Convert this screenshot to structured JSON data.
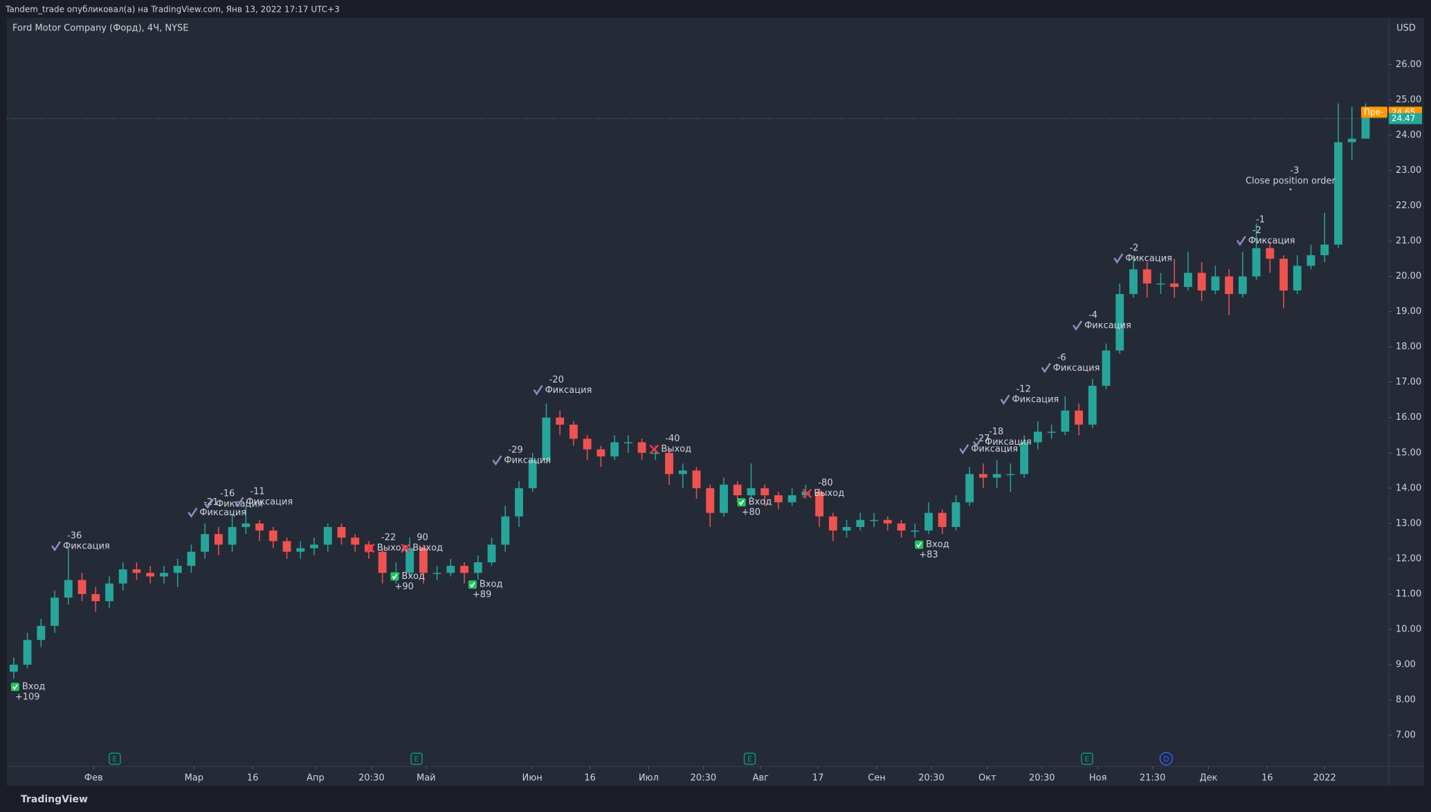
{
  "header": {
    "publisher": "Tandem_trade опубликовал(а) на TradingView.com, Янв 13, 2022 17:17 UTC+3",
    "brand": "TradingView"
  },
  "chart_data": {
    "type": "candlestick",
    "title": "Ford Motor Company (Форд), 4Ч, NYSE",
    "currency": "USD",
    "up_color": "#26a69a",
    "down_color": "#ef5350",
    "grid": false,
    "open": [
      8.8,
      9.0,
      9.7,
      10.1,
      10.9,
      11.4,
      11.0,
      10.8,
      11.3,
      11.7,
      11.6,
      11.5,
      11.6,
      11.8,
      12.2,
      12.7,
      12.4,
      12.9,
      13.0,
      12.8,
      12.5,
      12.2,
      12.3,
      12.4,
      12.9,
      12.6,
      12.4,
      12.2,
      11.6,
      11.6,
      12.3,
      11.6,
      11.6,
      11.8,
      11.6,
      11.9,
      12.4,
      13.2,
      14.0,
      14.8,
      16.0,
      15.8,
      15.4,
      15.1,
      14.9,
      15.3,
      15.3,
      15.0,
      15.0,
      14.4,
      14.5,
      14.0,
      13.3,
      14.1,
      13.8,
      14.0,
      13.8,
      13.6,
      13.8,
      13.9,
      13.2,
      12.8,
      12.9,
      13.1,
      13.1,
      13.0,
      12.8,
      12.8,
      13.3,
      12.9,
      13.6,
      14.4,
      14.3,
      14.4,
      14.4,
      15.3,
      15.6,
      15.6,
      16.2,
      15.8,
      16.9,
      17.9,
      19.5,
      20.2,
      19.8,
      19.8,
      19.7,
      20.1,
      19.6,
      20.0,
      19.5,
      20.0,
      20.8,
      20.5,
      19.6,
      20.3,
      20.6,
      20.9,
      23.8,
      23.9
    ],
    "high": [
      9.2,
      9.9,
      10.3,
      11.1,
      12.3,
      11.6,
      11.2,
      11.5,
      11.9,
      11.9,
      11.8,
      11.8,
      12.0,
      12.4,
      13.0,
      12.9,
      13.3,
      13.5,
      13.1,
      12.9,
      12.6,
      12.5,
      12.6,
      13.0,
      13.0,
      12.7,
      12.5,
      12.3,
      11.9,
      12.6,
      12.4,
      11.8,
      12.0,
      11.9,
      12.1,
      12.6,
      13.5,
      14.2,
      15.0,
      16.4,
      16.2,
      15.9,
      15.5,
      15.2,
      15.5,
      15.5,
      15.4,
      15.2,
      15.1,
      14.7,
      14.6,
      14.1,
      14.3,
      14.2,
      14.7,
      14.1,
      13.9,
      14.0,
      14.1,
      14.0,
      13.3,
      13.1,
      13.3,
      13.3,
      13.2,
      13.1,
      13.0,
      13.6,
      13.4,
      13.8,
      14.6,
      14.7,
      14.8,
      14.7,
      15.5,
      15.9,
      15.8,
      16.6,
      16.4,
      17.1,
      18.1,
      19.8,
      20.6,
      20.4,
      20.1,
      20.5,
      20.7,
      20.4,
      20.3,
      20.2,
      20.7,
      21.5,
      21.0,
      20.6,
      20.6,
      20.9,
      21.8,
      24.9,
      24.8,
      24.9
    ],
    "low": [
      8.6,
      8.9,
      9.5,
      9.9,
      10.7,
      10.8,
      10.5,
      10.6,
      11.1,
      11.4,
      11.3,
      11.3,
      11.2,
      11.6,
      12.0,
      12.1,
      12.2,
      12.7,
      12.5,
      12.3,
      12.0,
      12.0,
      12.1,
      12.2,
      12.4,
      12.2,
      12.0,
      11.3,
      11.3,
      11.5,
      11.3,
      11.4,
      11.5,
      11.3,
      11.4,
      11.8,
      12.2,
      12.9,
      13.9,
      14.7,
      15.5,
      15.2,
      14.8,
      14.6,
      14.8,
      15.0,
      14.8,
      14.8,
      14.1,
      14.0,
      13.7,
      12.9,
      13.2,
      13.6,
      13.7,
      13.5,
      13.4,
      13.5,
      13.7,
      12.9,
      12.5,
      12.6,
      12.8,
      12.9,
      12.8,
      12.6,
      12.6,
      12.7,
      12.7,
      12.8,
      13.5,
      14.0,
      14.0,
      13.9,
      14.3,
      15.1,
      15.4,
      15.5,
      15.5,
      15.7,
      16.8,
      17.8,
      19.4,
      19.4,
      19.5,
      19.4,
      19.6,
      19.3,
      19.5,
      18.9,
      19.4,
      19.9,
      20.1,
      19.1,
      19.5,
      20.2,
      20.4,
      20.8,
      23.3,
      23.9
    ],
    "close": [
      9.0,
      9.7,
      10.1,
      10.9,
      11.4,
      11.0,
      10.8,
      11.3,
      11.7,
      11.6,
      11.5,
      11.6,
      11.8,
      12.2,
      12.7,
      12.4,
      12.9,
      13.0,
      12.8,
      12.5,
      12.2,
      12.3,
      12.4,
      12.9,
      12.6,
      12.4,
      12.2,
      11.6,
      11.6,
      12.3,
      11.6,
      11.6,
      11.8,
      11.6,
      11.9,
      12.4,
      13.2,
      14.0,
      14.8,
      16.0,
      15.8,
      15.4,
      15.1,
      14.9,
      15.3,
      15.3,
      15.0,
      15.0,
      14.4,
      14.5,
      14.0,
      13.3,
      14.1,
      13.8,
      14.0,
      13.8,
      13.6,
      13.8,
      13.9,
      13.2,
      12.8,
      12.9,
      13.1,
      13.1,
      13.0,
      12.8,
      12.8,
      13.3,
      12.9,
      13.6,
      14.4,
      14.3,
      14.4,
      14.4,
      15.3,
      15.6,
      15.6,
      16.2,
      15.8,
      16.9,
      17.9,
      19.5,
      20.2,
      19.8,
      19.8,
      19.7,
      20.1,
      19.6,
      20.0,
      19.5,
      20.0,
      20.8,
      20.5,
      19.6,
      20.3,
      20.6,
      20.9,
      23.8,
      23.9,
      24.65
    ],
    "xlim": [
      -0.5,
      100.7
    ],
    "xticks": [
      {
        "value": 5.85,
        "label": "Фев"
      },
      {
        "value": 13.2,
        "label": "Мар"
      },
      {
        "value": 17.5,
        "label": "16"
      },
      {
        "value": 22.1,
        "label": "Апр"
      },
      {
        "value": 26.2,
        "label": "20:30"
      },
      {
        "value": 30.2,
        "label": "Май"
      },
      {
        "value": 37.97,
        "label": "Июн"
      },
      {
        "value": 42.2,
        "label": "16"
      },
      {
        "value": 46.5,
        "label": "Июл"
      },
      {
        "value": 50.5,
        "label": "20:30"
      },
      {
        "value": 54.7,
        "label": "Авг"
      },
      {
        "value": 58.9,
        "label": "17"
      },
      {
        "value": 63.2,
        "label": "Сен"
      },
      {
        "value": 67.2,
        "label": "20:30"
      },
      {
        "value": 71.3,
        "label": "Окт"
      },
      {
        "value": 75.3,
        "label": "20:30"
      },
      {
        "value": 79.4,
        "label": "Ноя"
      },
      {
        "value": 83.4,
        "label": "21:30"
      },
      {
        "value": 87.5,
        "label": "Дек"
      },
      {
        "value": 91.8,
        "label": "16"
      },
      {
        "value": 96.0,
        "label": "2022"
      }
    ],
    "ylim": [
      6.12,
      27.32
    ],
    "yticks": [
      {
        "value": 7,
        "label": "7.00"
      },
      {
        "value": 8,
        "label": "8.00"
      },
      {
        "value": 9,
        "label": "9.00"
      },
      {
        "value": 10,
        "label": "10.00"
      },
      {
        "value": 11,
        "label": "11.00"
      },
      {
        "value": 12,
        "label": "12.00"
      },
      {
        "value": 13,
        "label": "13.00"
      },
      {
        "value": 14,
        "label": "14.00"
      },
      {
        "value": 15,
        "label": "15.00"
      },
      {
        "value": 16,
        "label": "16.00"
      },
      {
        "value": 17,
        "label": "17.00"
      },
      {
        "value": 18,
        "label": "18.00"
      },
      {
        "value": 19,
        "label": "19.00"
      },
      {
        "value": 20,
        "label": "20.00"
      },
      {
        "value": 21,
        "label": "21.00"
      },
      {
        "value": 22,
        "label": "22.00"
      },
      {
        "value": 23,
        "label": "23.00"
      },
      {
        "value": 24,
        "label": "24.00"
      },
      {
        "value": 25,
        "label": "25.00"
      },
      {
        "value": 26,
        "label": "26.00"
      }
    ],
    "price_tags": [
      {
        "label": "Пре-",
        "value": 24.65,
        "color": "#ff9800"
      },
      {
        "value": 24.47,
        "color": "#26a69a"
      }
    ],
    "signals": [
      {
        "at": 0.1,
        "price": 8.37,
        "marker": "entry",
        "color": "#22c55e",
        "label": "Вход",
        "qty": "+109"
      },
      {
        "at": 3.1,
        "price": 12.35,
        "marker": "check",
        "color": "#8f8fc0",
        "label": "Фиксация",
        "qty": "-36"
      },
      {
        "at": 13.1,
        "price": 13.3,
        "marker": "check",
        "color": "#8f8fc0",
        "label": "Фиксация",
        "qty": "-21"
      },
      {
        "at": 14.3,
        "price": 13.55,
        "marker": "check",
        "color": "#8f8fc0",
        "label": "Фиксация",
        "qty": "-16"
      },
      {
        "at": 16.5,
        "price": 13.6,
        "marker": "check",
        "color": "#8f8fc0",
        "label": "Фиксация",
        "qty": "-11"
      },
      {
        "at": 26.1,
        "price": 12.3,
        "marker": "cross",
        "color": "#f23645",
        "label": "Выход",
        "qty": "-22"
      },
      {
        "at": 27.9,
        "price": 11.5,
        "marker": "entry",
        "color": "#22c55e",
        "label": "Вход",
        "qty": "+90"
      },
      {
        "at": 28.7,
        "price": 12.3,
        "marker": "cross",
        "color": "#f23645",
        "label": "Выход",
        "qty": "90"
      },
      {
        "at": 33.6,
        "price": 11.27,
        "marker": "entry",
        "color": "#22c55e",
        "label": "Вход",
        "qty": "+89"
      },
      {
        "at": 35.4,
        "price": 14.78,
        "marker": "check",
        "color": "#8f8fc0",
        "label": "Фиксация",
        "qty": "-29"
      },
      {
        "at": 38.4,
        "price": 16.77,
        "marker": "check",
        "color": "#8f8fc0",
        "label": "Фиксация",
        "qty": "-20"
      },
      {
        "at": 46.9,
        "price": 15.1,
        "marker": "cross",
        "color": "#f23645",
        "label": "Выход",
        "qty": "-40"
      },
      {
        "at": 53.3,
        "price": 13.6,
        "marker": "entry",
        "color": "#22c55e",
        "label": "Вход",
        "qty": "+80"
      },
      {
        "at": 58.1,
        "price": 13.85,
        "marker": "cross",
        "color": "#f23645",
        "label": "Выход",
        "qty": "-80"
      },
      {
        "at": 66.3,
        "price": 12.4,
        "marker": "entry",
        "color": "#22c55e",
        "label": "Вход",
        "qty": "+83"
      },
      {
        "at": 69.6,
        "price": 15.1,
        "marker": "check",
        "color": "#8f8fc0",
        "label": "Фиксация",
        "qty": "-27"
      },
      {
        "at": 70.6,
        "price": 15.3,
        "marker": "check",
        "color": "#8f8fc0",
        "label": "Фиксация",
        "qty": "-18"
      },
      {
        "at": 72.6,
        "price": 16.5,
        "marker": "check",
        "color": "#8f8fc0",
        "label": "Фиксация",
        "qty": "-12"
      },
      {
        "at": 75.6,
        "price": 17.4,
        "marker": "check",
        "color": "#8f8fc0",
        "label": "Фиксация",
        "qty": "-6"
      },
      {
        "at": 77.9,
        "price": 18.6,
        "marker": "check",
        "color": "#8f8fc0",
        "label": "Фиксация",
        "qty": "-4"
      },
      {
        "at": 80.9,
        "price": 20.5,
        "marker": "check",
        "color": "#8f8fc0",
        "label": "Фиксация",
        "qty": "-2"
      },
      {
        "at": 89.9,
        "price": 21.0,
        "marker": "check",
        "color": "#8f8fc0",
        "label": "Фиксация",
        "qty": "-2"
      },
      {
        "at": 91.0,
        "price": 21.3,
        "marker": "none",
        "color": "#8f8fc0",
        "qty": "-1"
      },
      {
        "at": 93.5,
        "price": 22.7,
        "marker": "none",
        "color": "#b2b5be",
        "label": "Close position order",
        "qty": "-3"
      }
    ],
    "events": [
      {
        "at": 7.4,
        "label": "E",
        "color": "#089981"
      },
      {
        "at": 29.5,
        "label": "E",
        "color": "#089981"
      },
      {
        "at": 53.9,
        "label": "E",
        "color": "#089981"
      },
      {
        "at": 78.6,
        "label": "E",
        "color": "#089981"
      },
      {
        "at": 84.4,
        "label": "D",
        "color": "#2962ff"
      }
    ]
  }
}
